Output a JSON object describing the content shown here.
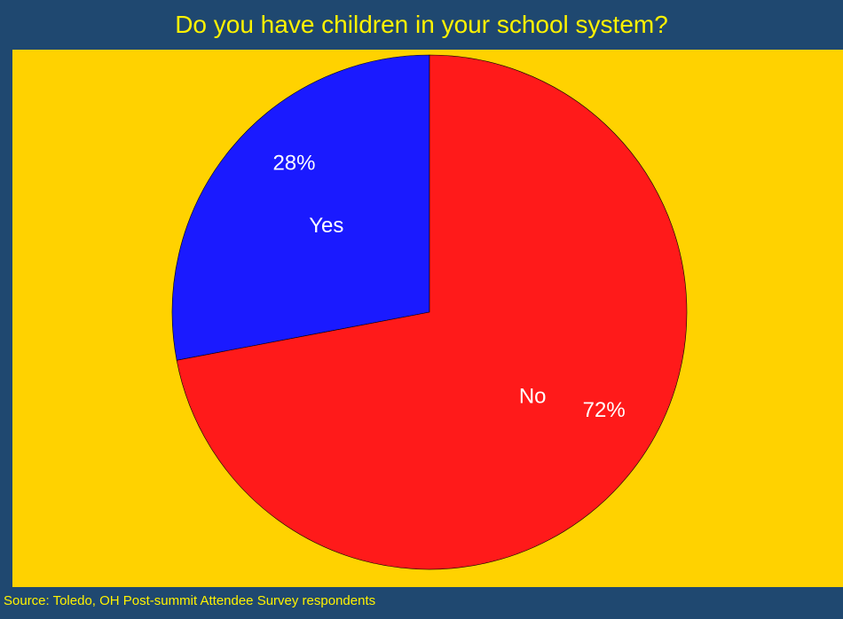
{
  "chart_data": {
    "type": "pie",
    "title": "Do you have children in your school system?",
    "categories": [
      "Yes",
      "No"
    ],
    "values": [
      28,
      72
    ],
    "percent_labels": [
      "28%",
      "72%"
    ],
    "colors": [
      "#1A1AFF",
      "#FF1A1A"
    ],
    "start_angle_deg": 0,
    "direction": "counterclockwise",
    "legend": "none",
    "source": "Source: Toledo, OH Post-summit Attendee Survey respondents"
  },
  "colors": {
    "frame": "#1F4870",
    "plot_background": "#FFD200",
    "title_text": "#FFF200",
    "label_text": "#FFFFFF"
  }
}
